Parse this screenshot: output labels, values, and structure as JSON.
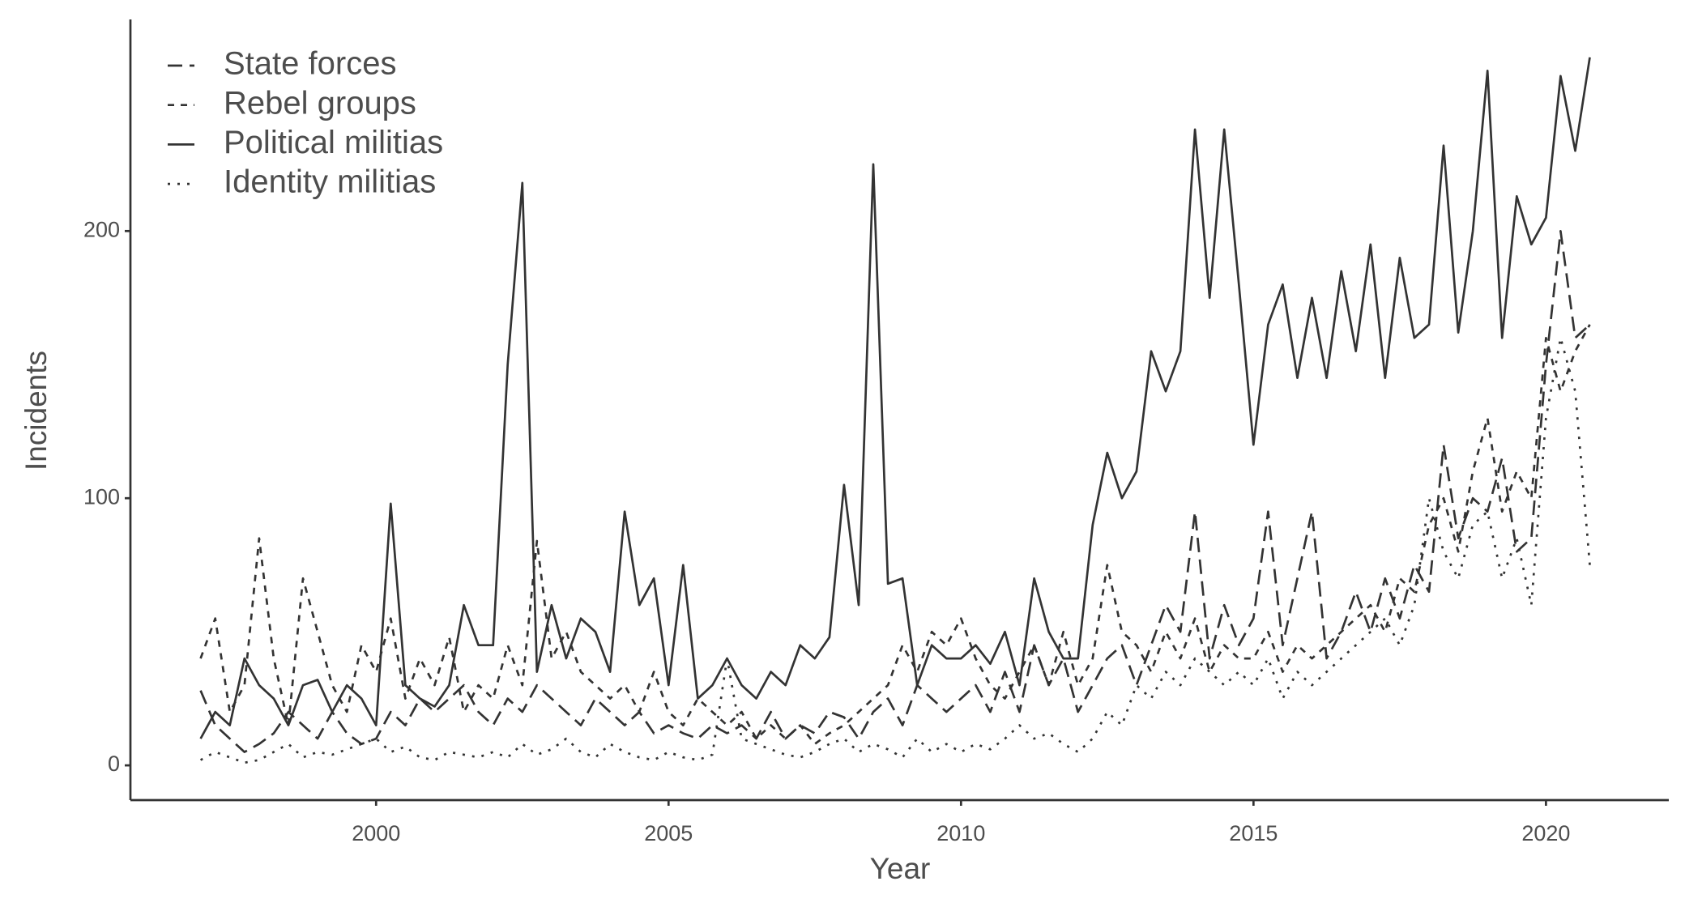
{
  "chart_data": {
    "type": "line",
    "x_label": "Year",
    "y_label": "Incidents",
    "x": [
      1997,
      1997.25,
      1997.5,
      1997.75,
      1998,
      1998.25,
      1998.5,
      1998.75,
      1999,
      1999.25,
      1999.5,
      1999.75,
      2000,
      2000.25,
      2000.5,
      2000.75,
      2001,
      2001.25,
      2001.5,
      2001.75,
      2002,
      2002.25,
      2002.5,
      2002.75,
      2003,
      2003.25,
      2003.5,
      2003.75,
      2004,
      2004.25,
      2004.5,
      2004.75,
      2005,
      2005.25,
      2005.5,
      2005.75,
      2006,
      2006.25,
      2006.5,
      2006.75,
      2007,
      2007.25,
      2007.5,
      2007.75,
      2008,
      2008.25,
      2008.5,
      2008.75,
      2009,
      2009.25,
      2009.5,
      2009.75,
      2010,
      2010.25,
      2010.5,
      2010.75,
      2011,
      2011.25,
      2011.5,
      2011.75,
      2012,
      2012.25,
      2012.5,
      2012.75,
      2013,
      2013.25,
      2013.5,
      2013.75,
      2014,
      2014.25,
      2014.5,
      2014.75,
      2015,
      2015.25,
      2015.5,
      2015.75,
      2016,
      2016.25,
      2016.5,
      2016.75,
      2017,
      2017.25,
      2017.5,
      2017.75,
      2018,
      2018.25,
      2018.5,
      2018.75,
      2019,
      2019.25,
      2019.5,
      2019.75,
      2020,
      2020.25,
      2020.5,
      2020.75
    ],
    "series": [
      {
        "name": "State forces",
        "color": "#333333",
        "linestyle": "longdash",
        "values": [
          28,
          15,
          10,
          5,
          8,
          12,
          20,
          15,
          10,
          20,
          12,
          8,
          10,
          20,
          15,
          25,
          20,
          25,
          30,
          20,
          15,
          25,
          20,
          30,
          25,
          20,
          15,
          25,
          20,
          15,
          20,
          12,
          15,
          12,
          10,
          15,
          12,
          15,
          10,
          20,
          10,
          15,
          12,
          20,
          18,
          10,
          20,
          25,
          15,
          30,
          25,
          20,
          25,
          30,
          20,
          35,
          20,
          45,
          30,
          40,
          20,
          30,
          40,
          45,
          30,
          45,
          60,
          50,
          95,
          40,
          60,
          45,
          55,
          95,
          45,
          70,
          95,
          40,
          50,
          65,
          50,
          70,
          55,
          75,
          65,
          120,
          85,
          100,
          95,
          115,
          80,
          85,
          150,
          200,
          160,
          165
        ]
      },
      {
        "name": "Rebel groups",
        "color": "#333333",
        "linestyle": "dashed",
        "values": [
          40,
          55,
          20,
          30,
          85,
          40,
          15,
          70,
          50,
          30,
          20,
          45,
          35,
          55,
          25,
          40,
          30,
          48,
          20,
          30,
          25,
          45,
          30,
          84,
          40,
          50,
          35,
          30,
          25,
          30,
          20,
          35,
          20,
          15,
          25,
          20,
          15,
          20,
          10,
          15,
          10,
          15,
          8,
          12,
          15,
          20,
          25,
          30,
          45,
          35,
          50,
          45,
          55,
          40,
          30,
          25,
          35,
          45,
          30,
          50,
          30,
          40,
          75,
          50,
          45,
          35,
          50,
          40,
          55,
          35,
          45,
          40,
          40,
          50,
          35,
          45,
          40,
          45,
          50,
          55,
          60,
          50,
          70,
          65,
          90,
          100,
          80,
          110,
          130,
          95,
          110,
          100,
          160,
          140,
          155,
          165
        ]
      },
      {
        "name": "Political militias",
        "color": "#333333",
        "linestyle": "solid",
        "values": [
          10,
          20,
          15,
          40,
          30,
          25,
          15,
          30,
          32,
          20,
          30,
          25,
          15,
          98,
          30,
          25,
          22,
          30,
          60,
          45,
          45,
          150,
          218,
          35,
          60,
          40,
          55,
          50,
          35,
          95,
          60,
          70,
          30,
          75,
          25,
          30,
          40,
          30,
          25,
          35,
          30,
          45,
          40,
          48,
          105,
          60,
          225,
          68,
          70,
          30,
          45,
          40,
          40,
          45,
          38,
          50,
          30,
          70,
          50,
          40,
          40,
          90,
          117,
          100,
          110,
          155,
          140,
          155,
          238,
          175,
          238,
          180,
          120,
          165,
          180,
          145,
          175,
          145,
          185,
          155,
          195,
          145,
          190,
          160,
          165,
          232,
          162,
          200,
          260,
          160,
          213,
          195,
          205,
          258,
          230,
          265
        ]
      },
      {
        "name": "Identity militias",
        "color": "#333333",
        "linestyle": "dotted",
        "values": [
          2,
          5,
          3,
          1,
          2,
          5,
          8,
          3,
          5,
          4,
          6,
          8,
          10,
          5,
          7,
          3,
          2,
          5,
          4,
          3,
          5,
          3,
          8,
          4,
          6,
          10,
          5,
          3,
          8,
          5,
          3,
          2,
          5,
          3,
          2,
          4,
          40,
          10,
          8,
          6,
          4,
          3,
          5,
          8,
          10,
          5,
          8,
          6,
          3,
          10,
          5,
          8,
          5,
          8,
          6,
          10,
          15,
          10,
          12,
          8,
          5,
          10,
          20,
          15,
          30,
          25,
          35,
          30,
          40,
          35,
          30,
          35,
          30,
          40,
          25,
          35,
          30,
          35,
          40,
          45,
          50,
          55,
          45,
          60,
          100,
          80,
          70,
          90,
          95,
          70,
          85,
          60,
          130,
          160,
          140,
          75
        ]
      }
    ],
    "xlim": [
      1995.8,
      2022.1
    ],
    "ylim": [
      -13,
      279.2
    ],
    "xticks": [
      2000,
      2005,
      2010,
      2015,
      2020
    ],
    "yticks": [
      0,
      100,
      200
    ],
    "legend": "top-left",
    "grid": false
  }
}
